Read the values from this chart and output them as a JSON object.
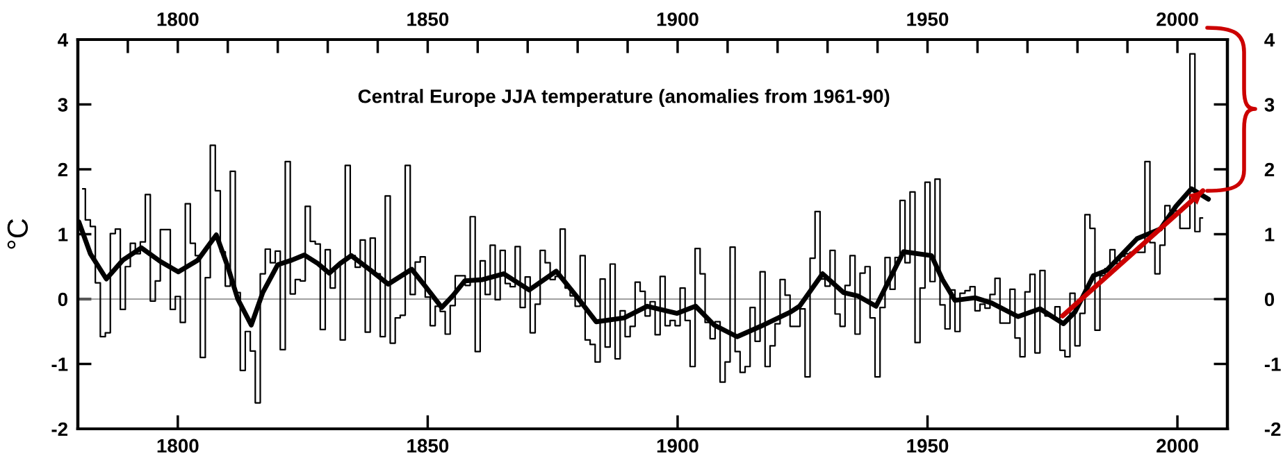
{
  "chart_data": {
    "type": "step",
    "title": "Central Europe JJA temperature (anomalies from 1961-90)",
    "ylabel": "°C",
    "xlim": [
      1780,
      2010
    ],
    "xticks": [
      1800,
      1850,
      1900,
      1950,
      2000
    ],
    "x2lim": [
      1780,
      2010
    ],
    "x2ticks": [
      1800,
      1850,
      1900,
      1950,
      2000
    ],
    "ylim": [
      -2,
      4
    ],
    "yticks": [
      -2,
      -1,
      0,
      1,
      2,
      3,
      4
    ],
    "y2lim": [
      -2,
      4
    ],
    "y2ticks": [
      -2,
      -1,
      0,
      1,
      2,
      3,
      4
    ],
    "ref_lines": [
      {
        "axis": "y",
        "value": 0,
        "color": "#808080"
      }
    ],
    "series": [
      {
        "color": "#000000",
        "x": [
          1781,
          1782,
          1783,
          1784,
          1785,
          1786,
          1787,
          1788,
          1789,
          1790,
          1791,
          1792,
          1793,
          1794,
          1795,
          1796,
          1797,
          1798,
          1799,
          1800,
          1801,
          1802,
          1803,
          1804,
          1805,
          1806,
          1807,
          1808,
          1809,
          1810,
          1811,
          1812,
          1813,
          1814,
          1815,
          1816,
          1817,
          1818,
          1819,
          1820,
          1821,
          1822,
          1823,
          1824,
          1825,
          1826,
          1827,
          1828,
          1829,
          1830,
          1831,
          1832,
          1833,
          1834,
          1835,
          1836,
          1837,
          1838,
          1839,
          1840,
          1841,
          1842,
          1843,
          1844,
          1845,
          1846,
          1847,
          1848,
          1849,
          1850,
          1851,
          1852,
          1853,
          1854,
          1855,
          1856,
          1857,
          1858,
          1859,
          1860,
          1861,
          1862,
          1863,
          1864,
          1865,
          1866,
          1867,
          1868,
          1869,
          1870,
          1871,
          1872,
          1873,
          1874,
          1875,
          1876,
          1877,
          1878,
          1879,
          1880,
          1881,
          1882,
          1883,
          1884,
          1885,
          1886,
          1887,
          1888,
          1889,
          1890,
          1891,
          1892,
          1893,
          1894,
          1895,
          1896,
          1897,
          1898,
          1899,
          1900,
          1901,
          1902,
          1903,
          1904,
          1905,
          1906,
          1907,
          1908,
          1909,
          1910,
          1911,
          1912,
          1913,
          1914,
          1915,
          1916,
          1917,
          1918,
          1919,
          1920,
          1921,
          1922,
          1923,
          1924,
          1925,
          1926,
          1927,
          1928,
          1929,
          1930,
          1931,
          1932,
          1933,
          1934,
          1935,
          1936,
          1937,
          1938,
          1939,
          1940,
          1941,
          1942,
          1943,
          1944,
          1945,
          1946,
          1947,
          1948,
          1949,
          1950,
          1951,
          1952,
          1953,
          1954,
          1955,
          1956,
          1957,
          1958,
          1959,
          1960,
          1961,
          1962,
          1963,
          1964,
          1965,
          1966,
          1967,
          1968,
          1969,
          1970,
          1971,
          1972,
          1973,
          1974,
          1975,
          1976,
          1977,
          1978,
          1979,
          1980,
          1981,
          1982,
          1983,
          1984,
          1985,
          1986,
          1987,
          1988,
          1989,
          1990,
          1991,
          1992,
          1993,
          1994,
          1995,
          1996,
          1997,
          1998,
          1999,
          2000,
          2001,
          2002,
          2003,
          2004,
          2005
        ],
        "values": [
          1.7,
          1.22,
          1.12,
          0.25,
          -0.58,
          -0.52,
          1.01,
          1.08,
          -0.16,
          0.5,
          0.86,
          0.7,
          0.88,
          1.61,
          -0.03,
          0.28,
          1.07,
          1.07,
          -0.16,
          0.04,
          -0.36,
          1.47,
          0.86,
          0.67,
          -0.9,
          0.33,
          2.37,
          1.67,
          0.73,
          0.2,
          1.97,
          0.1,
          -1.1,
          -0.5,
          -0.8,
          -1.6,
          0.39,
          0.77,
          0.56,
          0.74,
          -0.78,
          2.12,
          0.08,
          0.3,
          0.28,
          1.43,
          0.89,
          0.85,
          -0.47,
          0.76,
          0.17,
          0.51,
          -0.63,
          2.06,
          0.67,
          0.49,
          0.91,
          -0.51,
          0.94,
          0.39,
          -0.58,
          1.59,
          -0.68,
          -0.29,
          -0.25,
          2.06,
          0.07,
          0.57,
          0.65,
          0.03,
          -0.41,
          -0.11,
          -0.19,
          -0.54,
          -0.1,
          0.36,
          0.36,
          0.21,
          1.27,
          -0.81,
          0.59,
          0.07,
          0.83,
          -0.01,
          0.75,
          0.24,
          0.19,
          0.81,
          -0.13,
          0.34,
          -0.52,
          -0.08,
          0.75,
          0.56,
          0.3,
          0.35,
          1.08,
          0.17,
          0.05,
          -0.11,
          0.67,
          -0.63,
          -0.7,
          -0.97,
          0.31,
          -0.74,
          0.54,
          -0.92,
          -0.18,
          -0.58,
          -0.42,
          0.26,
          0.12,
          -0.26,
          -0.04,
          -0.55,
          0.35,
          -0.41,
          -0.33,
          -0.41,
          0.17,
          -0.33,
          -1.04,
          0.78,
          0.39,
          -0.36,
          -0.61,
          -0.35,
          -1.28,
          -0.97,
          0.8,
          -0.81,
          -1.13,
          -1.04,
          -0.13,
          -0.65,
          0.42,
          -1.04,
          -0.72,
          -0.38,
          0.3,
          0.06,
          -0.42,
          -0.42,
          -0.15,
          -1.2,
          0.63,
          1.35,
          0.31,
          0.2,
          0.75,
          -0.23,
          -0.42,
          0.21,
          0.67,
          -0.54,
          0.4,
          0.5,
          -0.29,
          -1.2,
          -0.13,
          0.64,
          0.15,
          0.64,
          1.52,
          0.56,
          1.65,
          -0.67,
          0.17,
          1.8,
          0.27,
          1.85,
          -0.09,
          -0.46,
          0.14,
          -0.5,
          0.09,
          0.13,
          0.19,
          -0.18,
          -0.08,
          -0.14,
          0.07,
          0.32,
          -0.37,
          -0.37,
          0.15,
          -0.6,
          -0.89,
          0.11,
          0.38,
          -0.83,
          0.44,
          -0.26,
          -0.27,
          -0.12,
          -0.79,
          -0.89,
          0.09,
          -0.72,
          -0.22,
          1.3,
          1.09,
          -0.48,
          0.36,
          0.47,
          0.76,
          0.55,
          0.66,
          0.7,
          0.72,
          0.72,
          0.72,
          2.12,
          0.87,
          0.39,
          0.83,
          1.44,
          1.36,
          1.36,
          1.09,
          1.09,
          3.78,
          1.04,
          1.25
        ]
      },
      {
        "type": "line",
        "color": "#000000",
        "x": [
          1780.2,
          1782.5,
          1785.7,
          1789,
          1792.7,
          1796.5,
          1800.1,
          1804,
          1807.7,
          1810,
          1812,
          1814.7,
          1817,
          1820,
          1822.8,
          1825.3,
          1828,
          1830.3,
          1832.5,
          1834.7,
          1838.5,
          1842.1,
          1846.8,
          1849.5,
          1852.8,
          1855,
          1857.4,
          1861,
          1865.2,
          1870.3,
          1875.7,
          1879.6,
          1883.7,
          1889.3,
          1893.9,
          1899.9,
          1903.6,
          1907.3,
          1911.9,
          1916.6,
          1922.6,
          1924.4,
          1929.0,
          1933.2,
          1936,
          1939.7,
          1945.2,
          1950.8,
          1953,
          1955.5,
          1959.5,
          1962.8,
          1968.1,
          1972.5,
          1977.2,
          1979.5,
          1983.2,
          1985.8,
          1991.9,
          1996.6,
          1999.7,
          2002.8,
          2006.2
        ],
        "values": [
          1.19,
          0.7,
          0.31,
          0.6,
          0.79,
          0.58,
          0.42,
          0.6,
          0.99,
          0.5,
          0.0,
          -0.4,
          0.1,
          0.53,
          0.6,
          0.68,
          0.55,
          0.4,
          0.55,
          0.67,
          0.45,
          0.23,
          0.46,
          0.2,
          -0.13,
          0.05,
          0.28,
          0.3,
          0.39,
          0.14,
          0.43,
          0.06,
          -0.35,
          -0.29,
          -0.11,
          -0.22,
          -0.11,
          -0.4,
          -0.58,
          -0.42,
          -0.2,
          -0.11,
          0.39,
          0.1,
          0.05,
          -0.11,
          0.73,
          0.67,
          0.3,
          -0.02,
          0.02,
          -0.06,
          -0.27,
          -0.15,
          -0.38,
          -0.2,
          0.36,
          0.44,
          0.93,
          1.08,
          1.43,
          1.7,
          1.54
        ]
      },
      {
        "type": "line",
        "color": "#cc0000",
        "x": [
          1977,
          2005.1
        ],
        "values": [
          -0.26,
          1.67
        ]
      }
    ]
  }
}
